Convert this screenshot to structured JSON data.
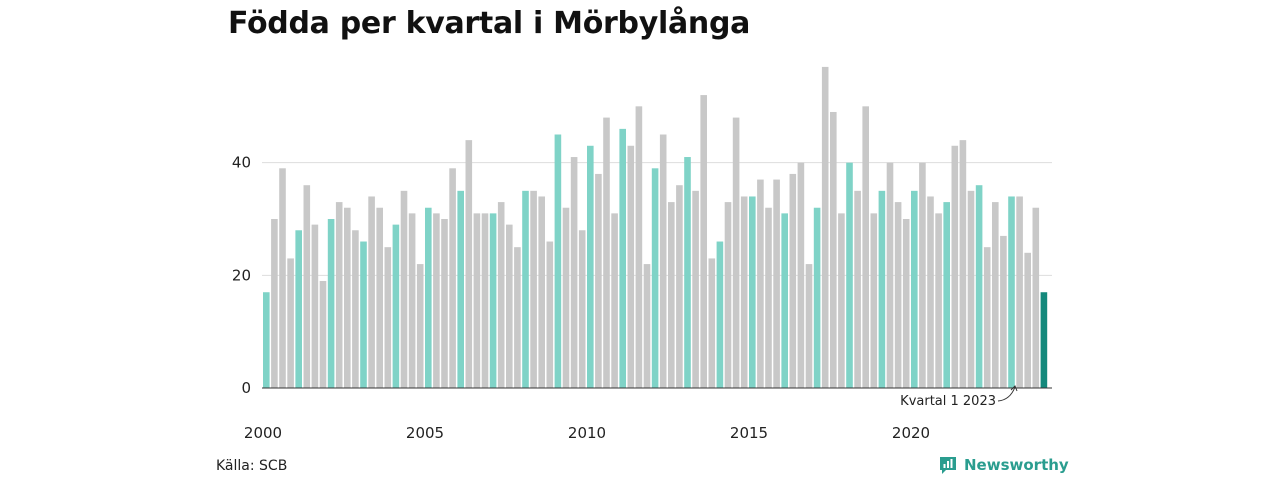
{
  "title": "Födda per kvartal i Mörbylånga",
  "source": "Källa: SCB",
  "brand": {
    "name": "Newsworthy",
    "icon": "newsworthy-logo-icon"
  },
  "colors": {
    "q1": "#7fd3c7",
    "other": "#c8c8c8",
    "latest": "#14897c",
    "grid": "#dddddd",
    "axis": "#333333"
  },
  "chart_data": {
    "type": "bar",
    "title": "Födda per kvartal i Mörbylånga",
    "xlabel": "",
    "ylabel": "",
    "ylim": [
      0,
      60
    ],
    "yticks": [
      0,
      20,
      40
    ],
    "grid": true,
    "start_year": 2000,
    "xtick_years": [
      "2000",
      "2005",
      "2010",
      "2015",
      "2020"
    ],
    "values": [
      17,
      30,
      39,
      23,
      28,
      36,
      29,
      19,
      30,
      33,
      32,
      28,
      26,
      34,
      32,
      25,
      29,
      35,
      31,
      22,
      32,
      31,
      30,
      39,
      35,
      44,
      31,
      31,
      31,
      33,
      29,
      25,
      35,
      35,
      34,
      26,
      45,
      32,
      41,
      28,
      43,
      38,
      48,
      31,
      46,
      43,
      50,
      22,
      39,
      45,
      33,
      36,
      41,
      35,
      52,
      23,
      26,
      33,
      48,
      34,
      34,
      37,
      32,
      37,
      31,
      38,
      40,
      22,
      32,
      57,
      49,
      31,
      40,
      35,
      50,
      31,
      35,
      40,
      33,
      30,
      35,
      40,
      34,
      31,
      33,
      43,
      44,
      35,
      36,
      25,
      33,
      27,
      34,
      34,
      24,
      32,
      17
    ],
    "highlight_label": "Kvartal 1 2023"
  }
}
